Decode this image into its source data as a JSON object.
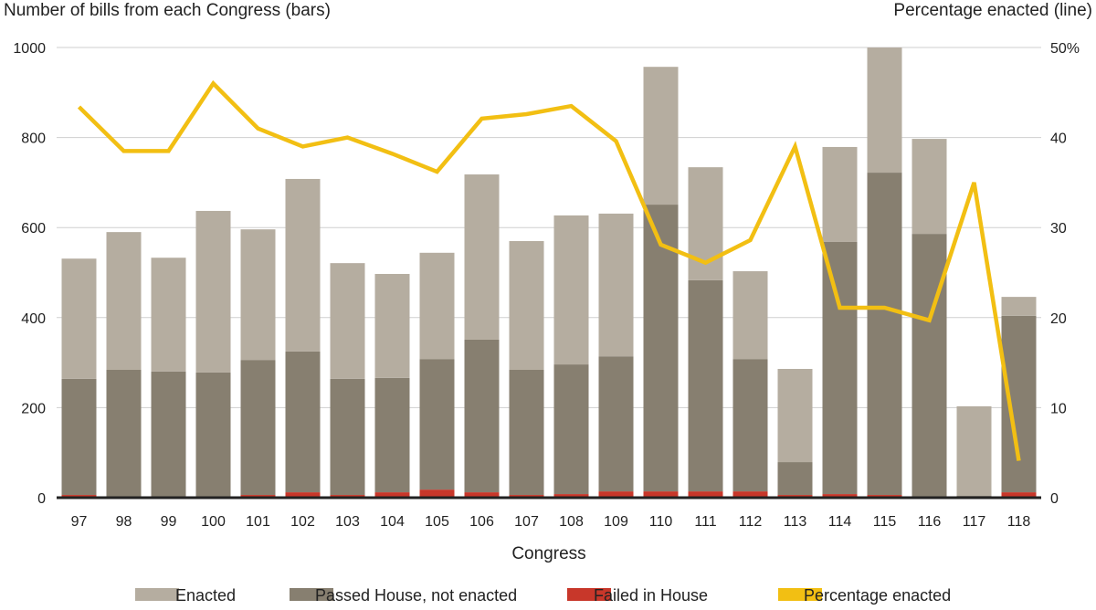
{
  "chart_data": {
    "type": "bar",
    "stacked": true,
    "title_left": "Number of bills from each Congress (bars)",
    "title_right": "Percentage enacted (line)",
    "xlabel": "Congress",
    "categories": [
      "97",
      "98",
      "99",
      "100",
      "101",
      "102",
      "103",
      "104",
      "105",
      "106",
      "107",
      "108",
      "109",
      "110",
      "111",
      "112",
      "113",
      "114",
      "115",
      "116",
      "117",
      "118"
    ],
    "ylim": [
      0,
      1000
    ],
    "yticks": [
      "0",
      "200",
      "400",
      "600",
      "800",
      "1000"
    ],
    "y2lim": [
      0,
      50
    ],
    "y2ticks": [
      "0",
      "10",
      "20",
      "30",
      "40",
      "50%"
    ],
    "grid": true,
    "legend_placement": "bottom",
    "series": [
      {
        "name": "Failed in House",
        "color": "#c8372a",
        "values": [
          6,
          0,
          0,
          0,
          6,
          12,
          6,
          12,
          18,
          12,
          6,
          8,
          14,
          14,
          14,
          14,
          6,
          8,
          6,
          2,
          0,
          12
        ]
      },
      {
        "name": "Passed House, not enacted",
        "color": "#877f70",
        "values": [
          258,
          284,
          280,
          278,
          300,
          313,
          258,
          254,
          290,
          339,
          278,
          288,
          300,
          637,
          469,
          294,
          73,
          560,
          716,
          584,
          4,
          392
        ]
      },
      {
        "name": "Enacted",
        "color": "#b5ada0",
        "values": [
          267,
          306,
          253,
          359,
          290,
          383,
          257,
          231,
          236,
          367,
          286,
          331,
          317,
          306,
          251,
          195,
          207,
          211,
          278,
          211,
          199,
          42
        ]
      },
      {
        "name": "Percentage enacted",
        "type": "line",
        "axis": "right",
        "color": "#f2bf13",
        "values": [
          43.4,
          38.5,
          38.5,
          46,
          41,
          39,
          40,
          38.2,
          36.2,
          42.1,
          42.6,
          43.5,
          39.6,
          28.1,
          26.1,
          28.6,
          39,
          21.1,
          21.1,
          19.7,
          35,
          4.1
        ]
      }
    ],
    "legend": [
      "Enacted",
      "Passed House, not enacted",
      "Failed in House",
      "Percentage enacted"
    ]
  }
}
